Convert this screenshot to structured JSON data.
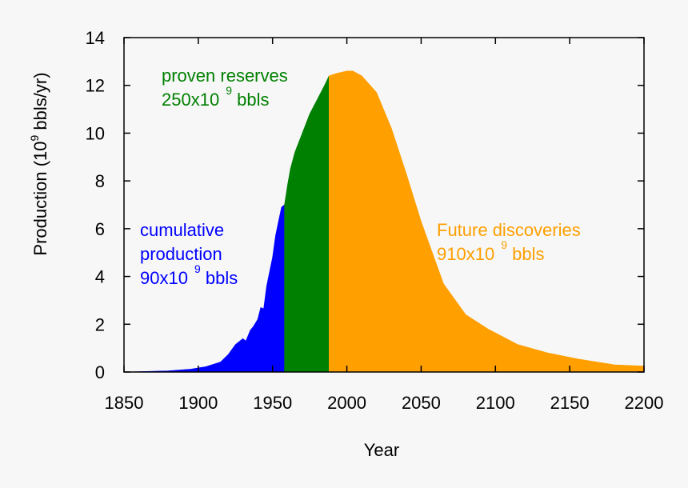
{
  "chart_data": {
    "type": "area",
    "title": "",
    "xlabel": "Year",
    "ylabel": {
      "main": "Production (10",
      "sup": "9",
      "tail": " bbls/yr)"
    },
    "xlim": [
      1850,
      2200
    ],
    "ylim": [
      0,
      14
    ],
    "xticks": [
      1850,
      1900,
      1950,
      2000,
      2050,
      2100,
      2150,
      2200
    ],
    "yticks": [
      0,
      2,
      4,
      6,
      8,
      10,
      12,
      14
    ],
    "grid": false,
    "series": [
      {
        "name": "cumulative production",
        "color": "#0000ff",
        "x": [
          1850,
          1880,
          1895,
          1905,
          1915,
          1920,
          1925,
          1927,
          1930,
          1932,
          1935,
          1937,
          1940,
          1942,
          1944,
          1946,
          1948,
          1950,
          1952,
          1954,
          1956,
          1958
        ],
        "y": [
          0,
          0.05,
          0.12,
          0.22,
          0.42,
          0.72,
          1.15,
          1.25,
          1.4,
          1.3,
          1.75,
          1.9,
          2.2,
          2.7,
          2.65,
          3.6,
          4.2,
          4.8,
          5.7,
          6.3,
          6.9,
          7.0
        ]
      },
      {
        "name": "proven reserves",
        "color": "#008000",
        "x": [
          1958,
          1960,
          1962,
          1965,
          1970,
          1975,
          1980,
          1985,
          1988
        ],
        "y": [
          7.0,
          7.8,
          8.5,
          9.2,
          10.0,
          10.8,
          11.4,
          12.0,
          12.4
        ]
      },
      {
        "name": "Future discoveries",
        "color": "#ff9f00",
        "x": [
          1988,
          1993,
          2000,
          2004,
          2010,
          2020,
          2030,
          2040,
          2050,
          2065,
          2080,
          2095,
          2115,
          2135,
          2155,
          2180,
          2200
        ],
        "y": [
          12.4,
          12.5,
          12.6,
          12.6,
          12.4,
          11.7,
          10.2,
          8.3,
          6.3,
          3.7,
          2.4,
          1.8,
          1.15,
          0.8,
          0.55,
          0.3,
          0.25
        ]
      }
    ],
    "annotations": [
      {
        "lines": [
          "cumulative",
          "production",
          "90x10"
        ],
        "sup": "9",
        "tail": " bbls",
        "color": "#0000ff"
      },
      {
        "lines": [
          "proven reserves",
          "250x10"
        ],
        "sup": "9",
        "tail": " bbls",
        "color": "#008000"
      },
      {
        "lines": [
          "Future discoveries",
          "910x10"
        ],
        "sup": "9",
        "tail": " bbls",
        "color": "#ff9f00"
      }
    ]
  }
}
